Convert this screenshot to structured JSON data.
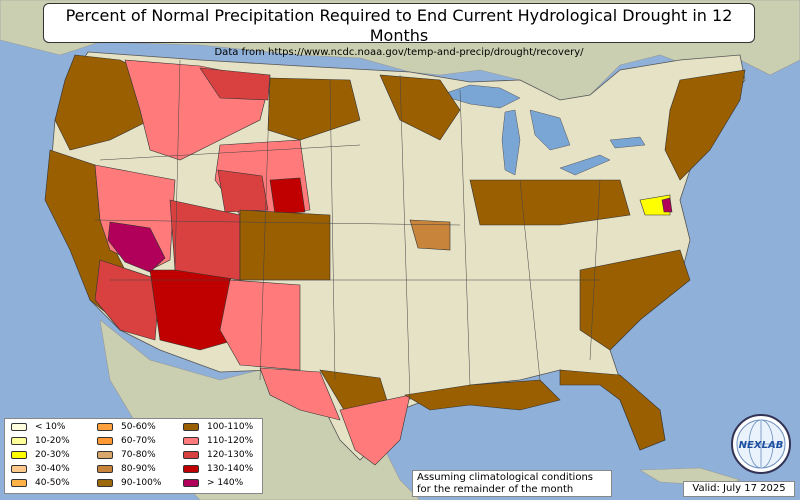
{
  "title": "Percent of Normal Precipitation Required to End Current Hydrological Drought in 12 Months",
  "subtitle": "Data from https://www.ncdc.noaa.gov/temp-and-precip/drought/recovery/",
  "note": [
    "Assuming climatological conditions",
    "for the remainder of the month"
  ],
  "valid": "Valid: July 17 2025",
  "logo": {
    "text": "NEXLAB",
    "icon": "globe-logo-icon"
  },
  "colors": {
    "water": "#8fb0d8",
    "land_outside": "#c9cfb0",
    "land_us": "#e6e2c6",
    "state_border": "#333333"
  },
  "legend": [
    {
      "label": "< 10%",
      "color": "#ffffe0"
    },
    {
      "label": "10-20%",
      "color": "#ffff99"
    },
    {
      "label": "20-30%",
      "color": "#ffff00"
    },
    {
      "label": "30-40%",
      "color": "#ffc98b"
    },
    {
      "label": "40-50%",
      "color": "#ffb347"
    },
    {
      "label": "50-60%",
      "color": "#ffa13d"
    },
    {
      "label": "60-70%",
      "color": "#ff9933"
    },
    {
      "label": "70-80%",
      "color": "#d9a66c"
    },
    {
      "label": "80-90%",
      "color": "#c8843a"
    },
    {
      "label": "90-100%",
      "color": "#9c6a0d"
    },
    {
      "label": "100-110%",
      "color": "#9a5f00"
    },
    {
      "label": "110-120%",
      "color": "#ff7a7a"
    },
    {
      "label": "120-130%",
      "color": "#d94040"
    },
    {
      "label": "130-140%",
      "color": "#c00000"
    },
    {
      "label": "> 140%",
      "color": "#b0005a"
    }
  ]
}
